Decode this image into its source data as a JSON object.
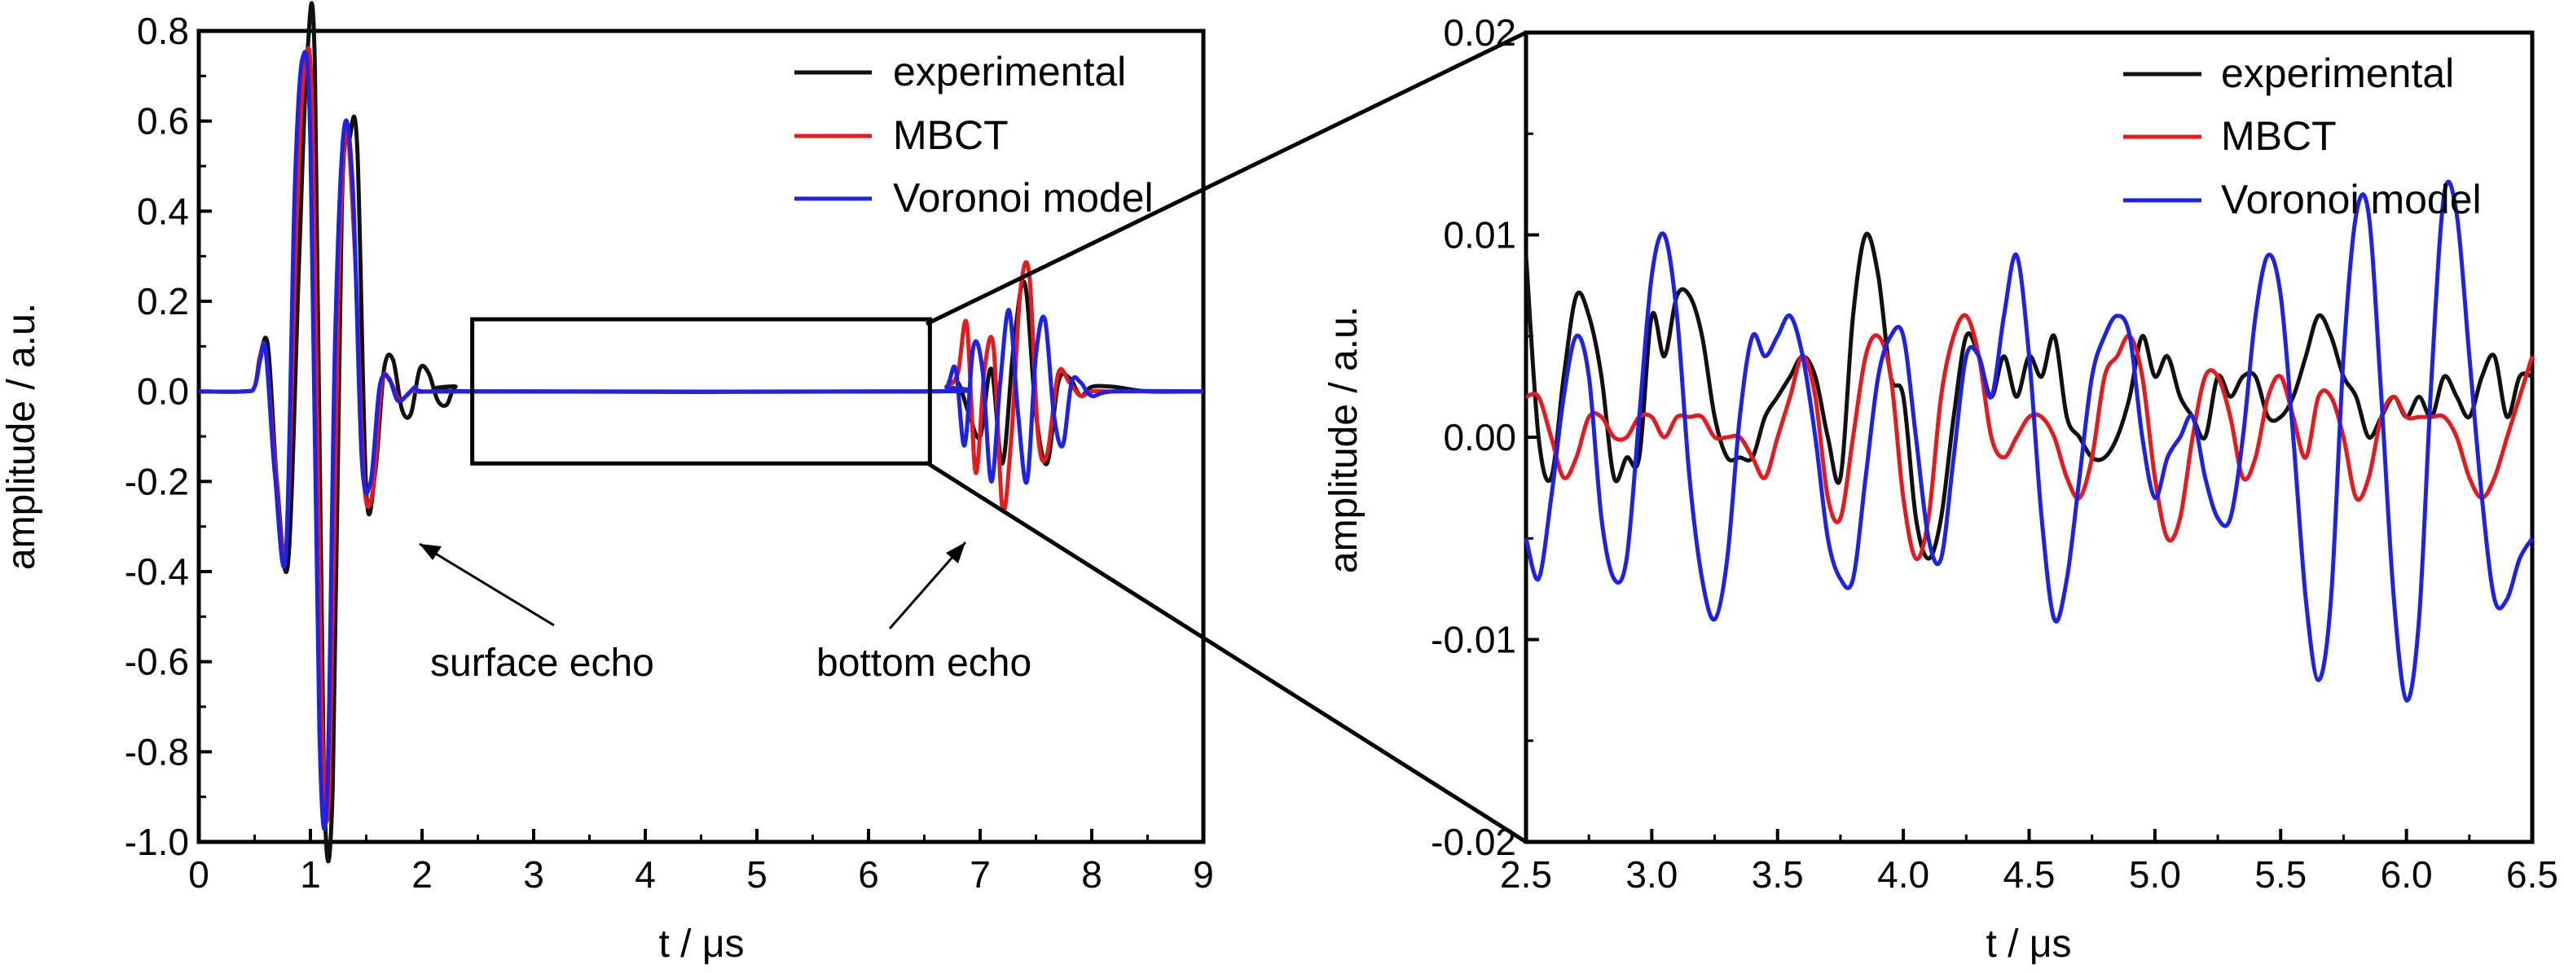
{
  "chart_data": [
    {
      "type": "line",
      "xlabel": "t / μs",
      "ylabel": "amplitude / a.u.",
      "xlim": [
        0,
        9
      ],
      "ylim": [
        -1.0,
        0.8
      ],
      "xticks": [
        "0",
        "1",
        "2",
        "3",
        "4",
        "5",
        "6",
        "7",
        "8",
        "9"
      ],
      "yticks": [
        "0.8",
        "0.6",
        "0.4",
        "0.2",
        "0.0",
        "-0.2",
        "-0.4",
        "-0.6",
        "-0.8",
        "-1.0"
      ],
      "legend": {
        "position": "top-right",
        "entries": [
          "experimental",
          "MBCT",
          "Voronoi model"
        ]
      },
      "annotations": [
        "surface echo",
        "bottom echo"
      ],
      "zoom_region": {
        "x": [
          2.45,
          6.55
        ],
        "y": [
          -0.16,
          0.16
        ]
      },
      "series": [
        {
          "name": "experimental",
          "color": "#111111",
          "x": [
            0,
            0.4,
            0.5,
            0.55,
            0.62,
            0.7,
            0.8,
            0.9,
            0.97,
            1.04,
            1.12,
            1.2,
            1.28,
            1.35,
            1.42,
            1.5,
            1.58,
            1.66,
            1.74,
            1.82,
            1.9,
            1.98,
            2.06,
            2.14,
            2.22,
            2.3,
            2.45,
            6.55,
            6.7,
            6.8,
            6.9,
            7.0,
            7.1,
            7.2,
            7.3,
            7.4,
            7.5,
            7.6,
            7.7,
            7.8,
            7.9,
            8.0,
            8.2,
            8.5,
            9.0
          ],
          "y": [
            0,
            0,
            0.01,
            0.08,
            0.1,
            -0.2,
            -0.38,
            0.3,
            0.74,
            0.72,
            -0.85,
            -0.88,
            0.4,
            0.56,
            0.54,
            -0.22,
            -0.18,
            0.05,
            0.07,
            -0.04,
            -0.05,
            0.05,
            0.04,
            -0.02,
            -0.03,
            0.01,
            0,
            0,
            0.01,
            0.02,
            -0.05,
            -0.1,
            0.05,
            -0.16,
            0.1,
            0.24,
            -0.05,
            -0.16,
            0.02,
            0.03,
            -0.01,
            0.01,
            0.01,
            0,
            0
          ]
        },
        {
          "name": "MBCT",
          "color": "#e8191c",
          "x": [
            0,
            0.4,
            0.5,
            0.55,
            0.6,
            0.68,
            0.78,
            0.88,
            0.95,
            1.02,
            1.1,
            1.17,
            1.25,
            1.32,
            1.4,
            1.48,
            1.56,
            1.64,
            1.72,
            1.8,
            1.9,
            2.0,
            2.45,
            6.55,
            6.7,
            6.8,
            6.88,
            6.96,
            7.04,
            7.12,
            7.2,
            7.28,
            7.36,
            7.44,
            7.52,
            7.6,
            7.7,
            7.8,
            7.9,
            8.0,
            8.2,
            9.0
          ],
          "y": [
            0,
            0,
            0.01,
            0.08,
            0.09,
            -0.15,
            -0.35,
            0.4,
            0.72,
            0.6,
            -0.7,
            -0.88,
            0.2,
            0.58,
            0.3,
            -0.2,
            -0.22,
            0.02,
            0.02,
            -0.02,
            0,
            0,
            0,
            0,
            0.01,
            0.04,
            0.15,
            -0.18,
            0.05,
            0.1,
            -0.26,
            -0.1,
            0.22,
            0.26,
            -0.1,
            -0.14,
            0.04,
            0.02,
            -0.01,
            0,
            0,
            0
          ]
        },
        {
          "name": "Voronoi model",
          "color": "#1c22e8",
          "x": [
            0,
            0.4,
            0.5,
            0.55,
            0.6,
            0.68,
            0.78,
            0.86,
            0.93,
            1.0,
            1.08,
            1.15,
            1.22,
            1.3,
            1.38,
            1.46,
            1.54,
            1.62,
            1.7,
            1.78,
            1.86,
            1.94,
            2.0,
            2.45,
            6.55,
            6.7,
            6.78,
            6.86,
            6.94,
            7.02,
            7.1,
            7.18,
            7.26,
            7.34,
            7.42,
            7.5,
            7.58,
            7.66,
            7.74,
            7.82,
            7.9,
            8.0,
            8.2,
            9.0
          ],
          "y": [
            0,
            0,
            0.01,
            0.07,
            0.09,
            -0.18,
            -0.36,
            0.45,
            0.74,
            0.55,
            -0.75,
            -0.89,
            0.1,
            0.58,
            0.45,
            -0.15,
            -0.2,
            0.01,
            0.03,
            -0.02,
            -0.01,
            0.01,
            0,
            0,
            0,
            0.01,
            0.05,
            -0.12,
            0.1,
            0.05,
            -0.2,
            0.02,
            0.18,
            -0.05,
            -0.2,
            0.08,
            0.16,
            -0.05,
            -0.12,
            0.02,
            0.02,
            -0.01,
            0,
            0
          ]
        }
      ]
    },
    {
      "type": "line",
      "xlabel": "t / μs",
      "ylabel": "amplitude / a.u.",
      "xlim": [
        2.5,
        6.5
      ],
      "ylim": [
        -0.02,
        0.02
      ],
      "xticks": [
        "2.5",
        "3.0",
        "3.5",
        "4.0",
        "4.5",
        "5.0",
        "5.5",
        "6.0",
        "6.5"
      ],
      "yticks": [
        "0.02",
        "0.01",
        "0.00",
        "-0.01",
        "-0.02"
      ],
      "legend": {
        "position": "top-right",
        "entries": [
          "experimental",
          "MBCT",
          "Voronoi model"
        ]
      },
      "series": [
        {
          "name": "experimental",
          "color": "#111111",
          "x": [
            2.5,
            2.55,
            2.6,
            2.65,
            2.7,
            2.75,
            2.8,
            2.85,
            2.9,
            2.95,
            3.0,
            3.05,
            3.1,
            3.15,
            3.2,
            3.25,
            3.3,
            3.35,
            3.4,
            3.45,
            3.5,
            3.55,
            3.6,
            3.65,
            3.7,
            3.75,
            3.8,
            3.85,
            3.9,
            3.95,
            4.0,
            4.05,
            4.1,
            4.15,
            4.2,
            4.25,
            4.3,
            4.35,
            4.4,
            4.45,
            4.5,
            4.55,
            4.6,
            4.65,
            4.7,
            4.75,
            4.8,
            4.85,
            4.9,
            4.95,
            5.0,
            5.05,
            5.1,
            5.15,
            5.2,
            5.25,
            5.3,
            5.35,
            5.4,
            5.45,
            5.5,
            5.55,
            5.6,
            5.65,
            5.7,
            5.75,
            5.8,
            5.85,
            5.9,
            5.95,
            6.0,
            6.05,
            6.1,
            6.15,
            6.2,
            6.25,
            6.3,
            6.35,
            6.4,
            6.45,
            6.5
          ],
          "y": [
            0.009,
            0,
            -0.002,
            0.003,
            0.007,
            0.006,
            0.003,
            -0.002,
            -0.001,
            -0.001,
            0.006,
            0.004,
            0.007,
            0.007,
            0.005,
            0.001,
            -0.001,
            -0.001,
            -0.001,
            0.001,
            0.002,
            0.003,
            0.004,
            0.003,
            0,
            -0.002,
            0.006,
            0.01,
            0.008,
            0.003,
            0.002,
            -0.004,
            -0.006,
            -0.004,
            0.001,
            0.005,
            0.004,
            0.002,
            0.004,
            0.002,
            0.004,
            0.003,
            0.005,
            0.001,
            0,
            -0.001,
            -0.001,
            0,
            0.002,
            0.005,
            0.003,
            0.004,
            0.002,
            0.001,
            0,
            0.003,
            0.002,
            0.003,
            0.003,
            0.001,
            0.001,
            0.002,
            0.004,
            0.006,
            0.005,
            0.003,
            0.002,
            0,
            0.001,
            0.002,
            0.001,
            0.002,
            0.001,
            0.003,
            0.002,
            0.001,
            0.003,
            0.004,
            0.001,
            0.003,
            0.003
          ]
        },
        {
          "name": "MBCT",
          "color": "#e8191c",
          "x": [
            2.5,
            2.55,
            2.6,
            2.65,
            2.7,
            2.75,
            2.8,
            2.85,
            2.9,
            2.95,
            3.0,
            3.05,
            3.1,
            3.15,
            3.2,
            3.25,
            3.3,
            3.35,
            3.4,
            3.45,
            3.5,
            3.55,
            3.6,
            3.65,
            3.7,
            3.75,
            3.8,
            3.85,
            3.9,
            3.95,
            4.0,
            4.05,
            4.1,
            4.15,
            4.2,
            4.25,
            4.3,
            4.35,
            4.4,
            4.45,
            4.5,
            4.55,
            4.6,
            4.65,
            4.7,
            4.75,
            4.8,
            4.85,
            4.9,
            4.95,
            5.0,
            5.05,
            5.1,
            5.15,
            5.2,
            5.25,
            5.3,
            5.35,
            5.4,
            5.45,
            5.5,
            5.55,
            5.6,
            5.65,
            5.7,
            5.75,
            5.8,
            5.85,
            5.9,
            5.95,
            6.0,
            6.05,
            6.1,
            6.15,
            6.2,
            6.25,
            6.3,
            6.35,
            6.4,
            6.45,
            6.5
          ],
          "y": [
            0.002,
            0.002,
            0,
            -0.002,
            -0.001,
            0.001,
            0.001,
            0,
            0,
            0.001,
            0.001,
            0,
            0.001,
            0.001,
            0.001,
            0,
            0,
            0,
            -0.001,
            -0.002,
            0,
            0.002,
            0.004,
            0.002,
            -0.003,
            -0.004,
            0,
            0.004,
            0.005,
            0.003,
            -0.003,
            -0.006,
            -0.004,
            0.002,
            0.005,
            0.006,
            0.004,
            0,
            -0.001,
            0,
            0.001,
            0.001,
            0,
            -0.002,
            -0.003,
            -0.001,
            0.003,
            0.004,
            0.005,
            0.003,
            -0.002,
            -0.005,
            -0.004,
            0,
            0.003,
            0.003,
            0.001,
            -0.002,
            -0.001,
            0.002,
            0.003,
            0.001,
            -0.001,
            0.002,
            0.002,
            0,
            -0.003,
            -0.002,
            0.001,
            0.002,
            0.001,
            0.001,
            0.001,
            0.001,
            0,
            -0.002,
            -0.003,
            -0.002,
            0,
            0.002,
            0.004
          ]
        },
        {
          "name": "Voronoi model",
          "color": "#1c22e8",
          "x": [
            2.5,
            2.55,
            2.6,
            2.65,
            2.7,
            2.75,
            2.8,
            2.85,
            2.9,
            2.95,
            3.0,
            3.05,
            3.1,
            3.15,
            3.2,
            3.25,
            3.3,
            3.35,
            3.4,
            3.45,
            3.5,
            3.55,
            3.6,
            3.65,
            3.7,
            3.75,
            3.8,
            3.85,
            3.9,
            3.95,
            4.0,
            4.05,
            4.1,
            4.15,
            4.2,
            4.25,
            4.3,
            4.35,
            4.4,
            4.45,
            4.5,
            4.55,
            4.6,
            4.65,
            4.7,
            4.75,
            4.8,
            4.85,
            4.9,
            4.95,
            5.0,
            5.05,
            5.1,
            5.15,
            5.2,
            5.25,
            5.3,
            5.35,
            5.4,
            5.45,
            5.5,
            5.55,
            5.6,
            5.65,
            5.7,
            5.75,
            5.8,
            5.85,
            5.9,
            5.95,
            6.0,
            6.05,
            6.1,
            6.15,
            6.2,
            6.25,
            6.3,
            6.35,
            6.4,
            6.45,
            6.5
          ],
          "y": [
            -0.005,
            -0.007,
            -0.003,
            0.002,
            0.005,
            0.003,
            -0.004,
            -0.007,
            -0.006,
            0.001,
            0.008,
            0.01,
            0.006,
            -0.002,
            -0.007,
            -0.009,
            -0.006,
            0.001,
            0.005,
            0.004,
            0.005,
            0.006,
            0.004,
            0,
            -0.005,
            -0.007,
            -0.007,
            -0.002,
            0.003,
            0.005,
            0.005,
            0,
            -0.005,
            -0.006,
            -0.001,
            0.004,
            0.004,
            0.002,
            0.006,
            0.009,
            0.004,
            -0.004,
            -0.009,
            -0.007,
            -0.002,
            0.003,
            0.005,
            0.006,
            0.005,
            0,
            -0.003,
            -0.001,
            0,
            0.001,
            -0.002,
            -0.004,
            -0.004,
            0,
            0.006,
            0.009,
            0.007,
            0,
            -0.008,
            -0.012,
            -0.008,
            0.004,
            0.011,
            0.011,
            0.002,
            -0.008,
            -0.013,
            -0.009,
            0.003,
            0.012,
            0.011,
            0.004,
            -0.003,
            -0.008,
            -0.008,
            -0.006,
            -0.005
          ]
        }
      ]
    }
  ]
}
